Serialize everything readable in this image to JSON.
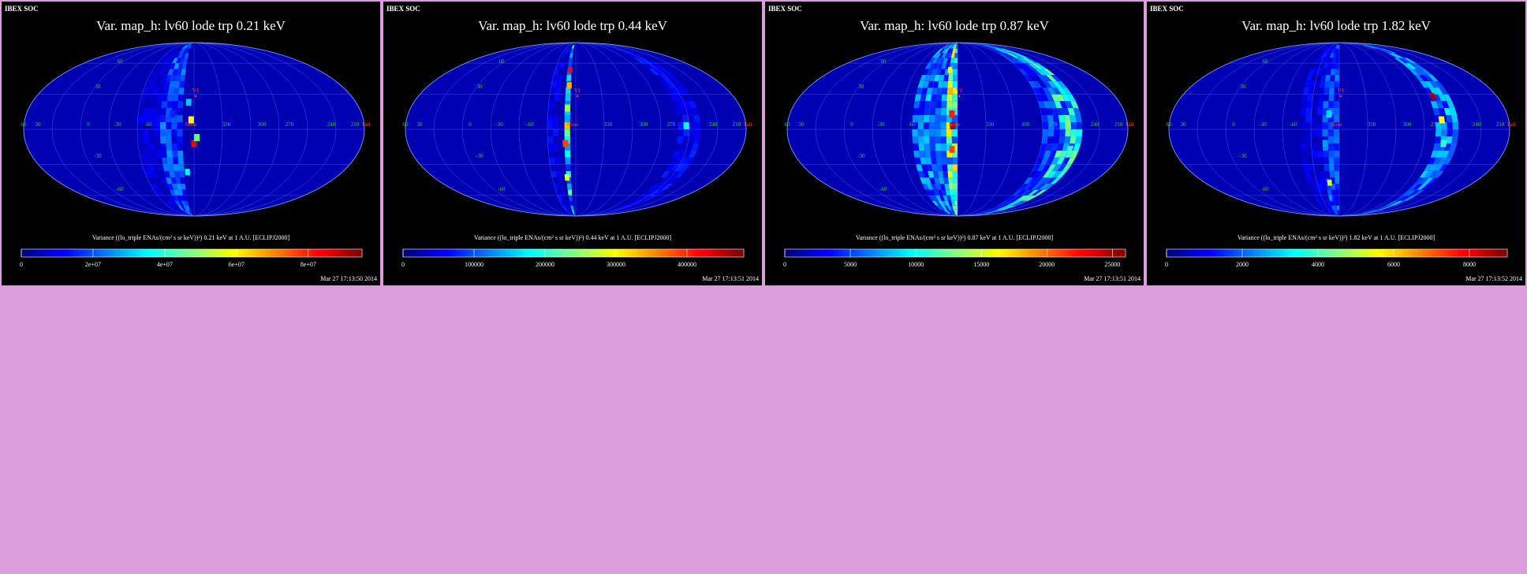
{
  "page": {
    "background": "#dc9ddc",
    "panel_background": "#000000"
  },
  "chart_data": [
    {
      "type": "heatmap",
      "projection": "mollweide-sky",
      "source": "IBEX SOC",
      "title": "Var. map_h: lv60 lode trp 0.21 keV",
      "colorbar_label": "Variance ((lo_triple ENAs/(cm² s sr keV))²) 0.21 keV at 1 A.U. [ECLIPJ2000]",
      "colorbar_ticks": [
        "0",
        "2e+07",
        "4e+07",
        "6e+07",
        "8e+07"
      ],
      "colorbar_tick_values": [
        0,
        20000000,
        40000000,
        60000000,
        80000000
      ],
      "colorbar_range": [
        0,
        95000000
      ],
      "timestamp": "Mar 27 17:13:50 2014",
      "grid": true,
      "map_labels": {
        "lon": [
          "60",
          "30",
          "0",
          "-30",
          "-60",
          "330",
          "300",
          "270",
          "240",
          "210"
        ],
        "lat": [
          "60",
          "30",
          "-30",
          "-60"
        ],
        "nose": "Nose",
        "tail": "Tail",
        "v1": "V1"
      },
      "highlight_values": [
        {
          "lon": 3,
          "lat": 20,
          "value": 30000000
        },
        {
          "lon": 0,
          "lat": 5,
          "value": 60000000
        },
        {
          "lon": -3,
          "lat": -15,
          "value": 85000000
        },
        {
          "lon": -6,
          "lat": -10,
          "value": 45000000
        },
        {
          "lon": 12,
          "lat": -30,
          "value": 25000000
        },
        {
          "lon": 5,
          "lat": -40,
          "value": 35000000
        },
        {
          "lon": 20,
          "lat": 10,
          "value": 15000000
        }
      ]
    },
    {
      "type": "heatmap",
      "projection": "mollweide-sky",
      "source": "IBEX SOC",
      "title": "Var. map_h: lv60 lode trp 0.44 keV",
      "colorbar_label": "Variance ((lo_triple ENAs/(cm² s sr keV))²) 0.44 keV at 1 A.U. [ECLIPJ2000]",
      "colorbar_ticks": [
        "0",
        "100000",
        "200000",
        "300000",
        "400000"
      ],
      "colorbar_tick_values": [
        0,
        100000,
        200000,
        300000,
        400000
      ],
      "colorbar_range": [
        0,
        480000
      ],
      "timestamp": "Mar 27 17:13:51 2014",
      "grid": true,
      "map_labels": {
        "lon": [
          "60",
          "30",
          "0",
          "-30",
          "-60",
          "330",
          "300",
          "270",
          "240",
          "210"
        ],
        "lat": [
          "60",
          "30",
          "-30",
          "-60"
        ],
        "nose": "Nose",
        "tail": "Tail",
        "v1": "V1"
      },
      "highlight_values": [
        {
          "lon": 5,
          "lat": 50,
          "value": 420000
        },
        {
          "lon": 5,
          "lat": 35,
          "value": 340000
        },
        {
          "lon": 6,
          "lat": 15,
          "value": 250000
        },
        {
          "lon": 6,
          "lat": 0,
          "value": 330000
        },
        {
          "lon": 8,
          "lat": -15,
          "value": 390000
        },
        {
          "lon": 8,
          "lat": -45,
          "value": 280000
        },
        {
          "lon": -120,
          "lat": 0,
          "value": 180000
        }
      ]
    },
    {
      "type": "heatmap",
      "projection": "mollweide-sky",
      "source": "IBEX SOC",
      "title": "Var. map_h: lv60 lode trp 0.87 keV",
      "colorbar_label": "Variance ((lo_triple ENAs/(cm² s sr keV))²) 0.87 keV at 1 A.U. [ECLIPJ2000]",
      "colorbar_ticks": [
        "0",
        "5000",
        "10000",
        "15000",
        "20000",
        "25000"
      ],
      "colorbar_tick_values": [
        0,
        5000,
        10000,
        15000,
        20000,
        25000
      ],
      "colorbar_range": [
        0,
        26000
      ],
      "timestamp": "Mar 27 17:13:51 2014",
      "grid": true,
      "map_labels": {
        "lon": [
          "60",
          "30",
          "0",
          "-30",
          "-60",
          "330",
          "300",
          "270",
          "240",
          "210"
        ],
        "lat": [
          "60",
          "30",
          "-30",
          "-60"
        ],
        "nose": "Nose",
        "tail": "Tail",
        "v1": "V1"
      },
      "highlight_values": [
        {
          "lon": 8,
          "lat": 50,
          "value": 16000
        },
        {
          "lon": 5,
          "lat": 30,
          "value": 18000
        },
        {
          "lon": 3,
          "lat": 10,
          "value": 22000
        },
        {
          "lon": 2,
          "lat": 0,
          "value": 25000
        },
        {
          "lon": 3,
          "lat": -20,
          "value": 21000
        },
        {
          "lon": -120,
          "lat": 0,
          "value": 13000
        },
        {
          "lon": -125,
          "lat": -20,
          "value": 11000
        }
      ]
    },
    {
      "type": "heatmap",
      "projection": "mollweide-sky",
      "source": "IBEX SOC",
      "title": "Var. map_h: lv60 lode trp 1.82 keV",
      "colorbar_label": "Variance ((lo_triple ENAs/(cm² s sr keV))²) 1.82 keV at 1 A.U. [ECLIPJ2000]",
      "colorbar_ticks": [
        "0",
        "2000",
        "4000",
        "6000",
        "8000"
      ],
      "colorbar_tick_values": [
        0,
        2000,
        4000,
        6000,
        8000
      ],
      "colorbar_range": [
        0,
        9000
      ],
      "timestamp": "Mar 27 17:13:52 2014",
      "grid": true,
      "map_labels": {
        "lon": [
          "60",
          "30",
          "0",
          "-30",
          "-60",
          "330",
          "300",
          "270",
          "240",
          "210"
        ],
        "lat": [
          "60",
          "30",
          "-30",
          "-60"
        ],
        "nose": "Nose",
        "tail": "Tail",
        "v1": "V1"
      },
      "highlight_values": [
        {
          "lon": -110,
          "lat": 25,
          "value": 8800
        },
        {
          "lon": -112,
          "lat": 5,
          "value": 5500
        },
        {
          "lon": -115,
          "lat": -15,
          "value": 3800
        },
        {
          "lon": 10,
          "lat": -50,
          "value": 5200
        },
        {
          "lon": 8,
          "lat": 10,
          "value": 3000
        },
        {
          "lon": 12,
          "lat": -15,
          "value": 2500
        }
      ]
    }
  ]
}
